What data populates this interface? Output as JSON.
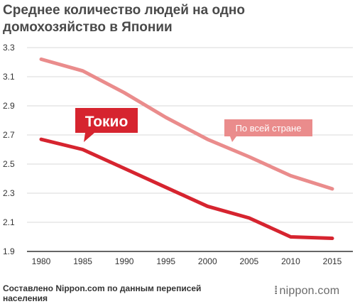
{
  "title": {
    "line1": "Среднее количество людей на одно",
    "line2": "домохозяйство в Японии"
  },
  "source": {
    "line1": "Составлено Nippon.com по данным переписей",
    "line2": "населения"
  },
  "brand": {
    "dots": "⁞",
    "text": "nippon.com"
  },
  "colors": {
    "tokyo": "#d6242f",
    "national": "#ea8c8c",
    "grid": "#d9d9d9",
    "axis": "#333333"
  },
  "chart_data": {
    "type": "line",
    "title": "Среднее количество людей на одно домохозяйство в Японии",
    "xlabel": "",
    "ylabel": "",
    "x": [
      1980,
      1985,
      1990,
      1995,
      2000,
      2005,
      2010,
      2015
    ],
    "ylim": [
      1.9,
      3.3
    ],
    "yticks": [
      "1.9",
      "2.1",
      "2.3",
      "2.5",
      "2.7",
      "2.9",
      "3.1",
      "3.3"
    ],
    "grid": true,
    "series": [
      {
        "name": "По всей стране",
        "color": "#ea8c8c",
        "values": [
          3.22,
          3.14,
          2.99,
          2.82,
          2.67,
          2.55,
          2.42,
          2.33
        ]
      },
      {
        "name": "Токио",
        "color": "#d6242f",
        "values": [
          2.67,
          2.6,
          2.47,
          2.34,
          2.21,
          2.13,
          2.0,
          1.99
        ]
      }
    ]
  }
}
